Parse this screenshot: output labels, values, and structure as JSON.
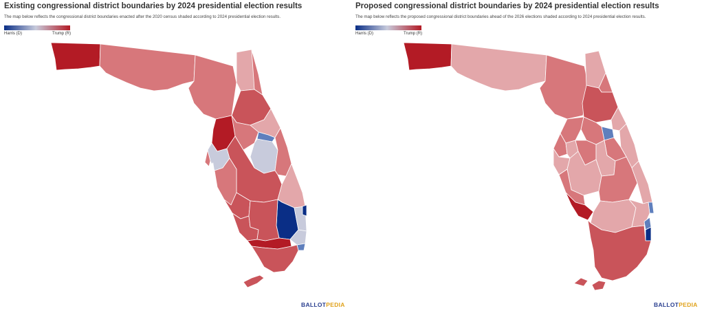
{
  "panels": [
    {
      "title": "Existing congressional district boundaries by 2024 presidential election results",
      "subtitle": "The map below reflects the congressional district boundaries enacted after the 2020 census shaded according to 2024 presidential election results.",
      "legend": {
        "left": "Harris (D)",
        "right": "Trump (R)"
      },
      "brand": {
        "part1": "BALLOT",
        "part2": "PEDIA"
      }
    },
    {
      "title": "Proposed congressional district boundaries by 2024 presidential election results",
      "subtitle": "The map below reflects the proposed congressional district boundaries ahead of the 2026 elections shaded according to 2024 presidential election results.",
      "legend": {
        "left": "Harris (D)",
        "right": "Trump (R)"
      },
      "brand": {
        "part1": "BALLOT",
        "part2": "PEDIA"
      }
    }
  ],
  "colors": {
    "strong_r": "#b31b25",
    "medium_r": "#c9545a",
    "light_r": "#d7777b",
    "pale_r": "#e3a7aa",
    "neutral": "#c8cbdc",
    "light_d": "#5f7fbd",
    "strong_d": "#0a2e86"
  }
}
